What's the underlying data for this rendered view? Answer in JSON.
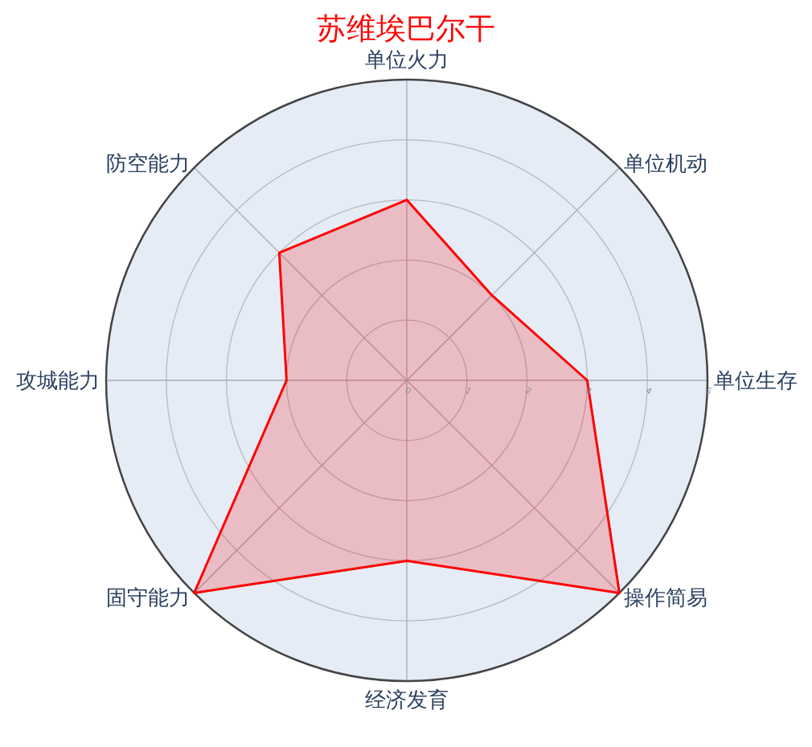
{
  "chart_data": {
    "type": "radar",
    "title": "苏维埃巴尔干",
    "categories": [
      "单位火力",
      "单位机动",
      "单位生存",
      "操作简易",
      "经济发育",
      "固守能力",
      "攻城能力",
      "防空能力"
    ],
    "series": [
      {
        "color": "#ff0000",
        "values": [
          3,
          2,
          3,
          5,
          3,
          5,
          2,
          3
        ]
      }
    ],
    "ylim": [
      0,
      5
    ],
    "yticks": [
      0,
      1,
      2,
      3,
      4,
      5
    ],
    "grid": true
  }
}
